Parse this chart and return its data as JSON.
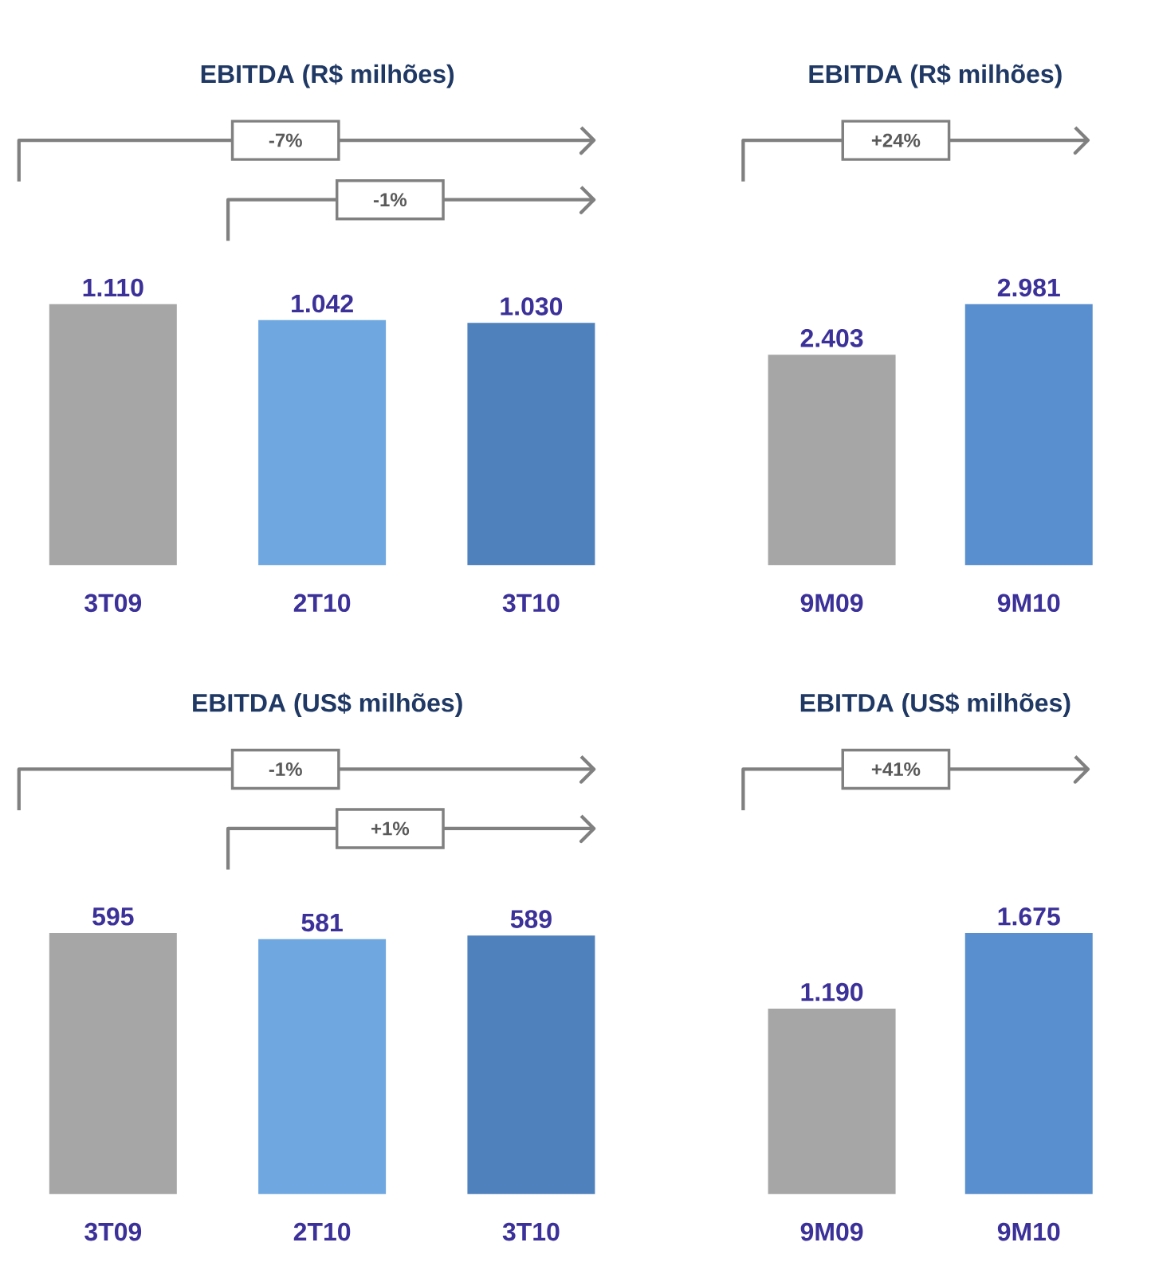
{
  "chart_data": [
    {
      "type": "bar",
      "title": "EBITDA (R$ milhões)",
      "categories": [
        "3T09",
        "2T10",
        "3T10"
      ],
      "values": [
        1110,
        1042,
        1030
      ],
      "value_labels": [
        "1.110",
        "1.042",
        "1.030"
      ],
      "colors": [
        "#a6a6a6",
        "#6fa8e0",
        "#4f81bd"
      ],
      "annotations": [
        "-7%",
        "-1%"
      ]
    },
    {
      "type": "bar",
      "title": "EBITDA (R$ milhões)",
      "categories": [
        "9M09",
        "9M10"
      ],
      "values": [
        2403,
        2981
      ],
      "value_labels": [
        "2.403",
        "2.981"
      ],
      "colors": [
        "#a6a6a6",
        "#5a8fcf"
      ],
      "annotations": [
        "+24%"
      ]
    },
    {
      "type": "bar",
      "title": "EBITDA (US$ milhões)",
      "categories": [
        "3T09",
        "2T10",
        "3T10"
      ],
      "values": [
        595,
        581,
        589
      ],
      "value_labels": [
        "595",
        "581",
        "589"
      ],
      "colors": [
        "#a6a6a6",
        "#6fa8e0",
        "#4f81bd"
      ],
      "annotations": [
        "-1%",
        "+1%"
      ]
    },
    {
      "type": "bar",
      "title": "EBITDA (US$ milhões)",
      "categories": [
        "9M09",
        "9M10"
      ],
      "values": [
        1190,
        1675
      ],
      "value_labels": [
        "1.190",
        "1.675"
      ],
      "colors": [
        "#a6a6a6",
        "#5a8fcf"
      ],
      "annotations": [
        "+41%"
      ]
    }
  ]
}
